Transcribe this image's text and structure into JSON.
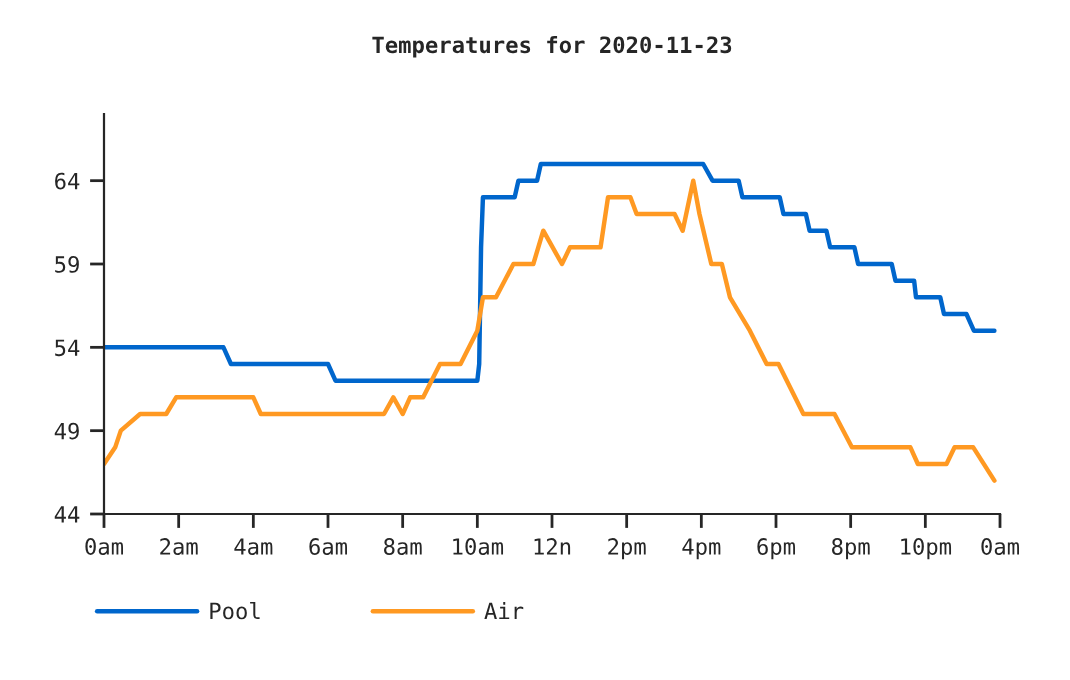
{
  "chart_data": {
    "type": "line",
    "title": "Temperatures for 2020-11-23",
    "xlim": [
      "2020-11-23T00:00",
      "2020-11-24T00:00"
    ],
    "ylim": [
      44,
      68
    ],
    "xticks": [
      {
        "value": "2020-11-23T00:00",
        "label": "0am"
      },
      {
        "value": "2020-11-23T02:00",
        "label": "2am"
      },
      {
        "value": "2020-11-23T04:00",
        "label": "4am"
      },
      {
        "value": "2020-11-23T06:00",
        "label": "6am"
      },
      {
        "value": "2020-11-23T08:00",
        "label": "8am"
      },
      {
        "value": "2020-11-23T10:00",
        "label": "10am"
      },
      {
        "value": "2020-11-23T12:00",
        "label": "12n"
      },
      {
        "value": "2020-11-23T14:00",
        "label": "2pm"
      },
      {
        "value": "2020-11-23T16:00",
        "label": "4pm"
      },
      {
        "value": "2020-11-23T18:00",
        "label": "6pm"
      },
      {
        "value": "2020-11-23T20:00",
        "label": "8pm"
      },
      {
        "value": "2020-11-23T22:00",
        "label": "10pm"
      },
      {
        "value": "2020-11-24T00:00",
        "label": "0am"
      }
    ],
    "yticks": [
      44,
      49,
      54,
      59,
      64
    ],
    "grid": false,
    "legend": "bottom",
    "marker": "none",
    "line_style": "solid",
    "series": [
      {
        "name": "Pool",
        "color": "#0066cc",
        "x": [
          "2020-11-23T00:00",
          "2020-11-23T03:12",
          "2020-11-23T03:24",
          "2020-11-23T06:00",
          "2020-11-23T06:12",
          "2020-11-23T10:00",
          "2020-11-23T10:03",
          "2020-11-23T10:06",
          "2020-11-23T10:09",
          "2020-11-23T11:00",
          "2020-11-23T11:06",
          "2020-11-23T11:36",
          "2020-11-23T11:42",
          "2020-11-23T16:03",
          "2020-11-23T16:18",
          "2020-11-23T17:00",
          "2020-11-23T17:06",
          "2020-11-23T18:06",
          "2020-11-23T18:12",
          "2020-11-23T18:48",
          "2020-11-23T18:54",
          "2020-11-23T19:21",
          "2020-11-23T19:27",
          "2020-11-23T20:06",
          "2020-11-23T20:12",
          "2020-11-23T21:06",
          "2020-11-23T21:12",
          "2020-11-23T21:42",
          "2020-11-23T21:45",
          "2020-11-23T22:24",
          "2020-11-23T22:30",
          "2020-11-23T23:06",
          "2020-11-23T23:18",
          "2020-11-23T23:51"
        ],
        "values": [
          54,
          54,
          53,
          53,
          52,
          52,
          53,
          60,
          63,
          63,
          64,
          64,
          65,
          65,
          64,
          64,
          63,
          63,
          62,
          62,
          61,
          61,
          60,
          60,
          59,
          59,
          58,
          58,
          57,
          57,
          56,
          56,
          55,
          55
        ]
      },
      {
        "name": "Air",
        "color": "#ff9922",
        "x": [
          "2020-11-23T00:00",
          "2020-11-23T00:18",
          "2020-11-23T00:27",
          "2020-11-23T00:58",
          "2020-11-23T01:40",
          "2020-11-23T01:56",
          "2020-11-23T04:00",
          "2020-11-23T04:12",
          "2020-11-23T07:30",
          "2020-11-23T07:45",
          "2020-11-23T08:00",
          "2020-11-23T08:12",
          "2020-11-23T08:33",
          "2020-11-23T09:00",
          "2020-11-23T09:33",
          "2020-11-23T10:00",
          "2020-11-23T10:09",
          "2020-11-23T10:30",
          "2020-11-23T10:58",
          "2020-11-23T11:30",
          "2020-11-23T11:46",
          "2020-11-23T12:16",
          "2020-11-23T12:29",
          "2020-11-23T13:18",
          "2020-11-23T13:30",
          "2020-11-23T14:06",
          "2020-11-23T14:16",
          "2020-11-23T15:17",
          "2020-11-23T15:30",
          "2020-11-23T15:47",
          "2020-11-23T15:57",
          "2020-11-23T16:16",
          "2020-11-23T16:33",
          "2020-11-23T16:46",
          "2020-11-23T17:18",
          "2020-11-23T17:45",
          "2020-11-23T18:04",
          "2020-11-23T18:44",
          "2020-11-23T19:34",
          "2020-11-23T20:02",
          "2020-11-23T21:36",
          "2020-11-23T21:48",
          "2020-11-23T22:34",
          "2020-11-23T22:47",
          "2020-11-23T23:17",
          "2020-11-23T23:51"
        ],
        "values": [
          47,
          48,
          49,
          50,
          50,
          51,
          51,
          50,
          50,
          51,
          50,
          51,
          51,
          53,
          53,
          55,
          57,
          57,
          59,
          59,
          61,
          59,
          60,
          60,
          63,
          63,
          62,
          62,
          61,
          64,
          62,
          59,
          59,
          57,
          55,
          53,
          53,
          50,
          50,
          48,
          48,
          47,
          47,
          48,
          48,
          46
        ]
      }
    ]
  }
}
